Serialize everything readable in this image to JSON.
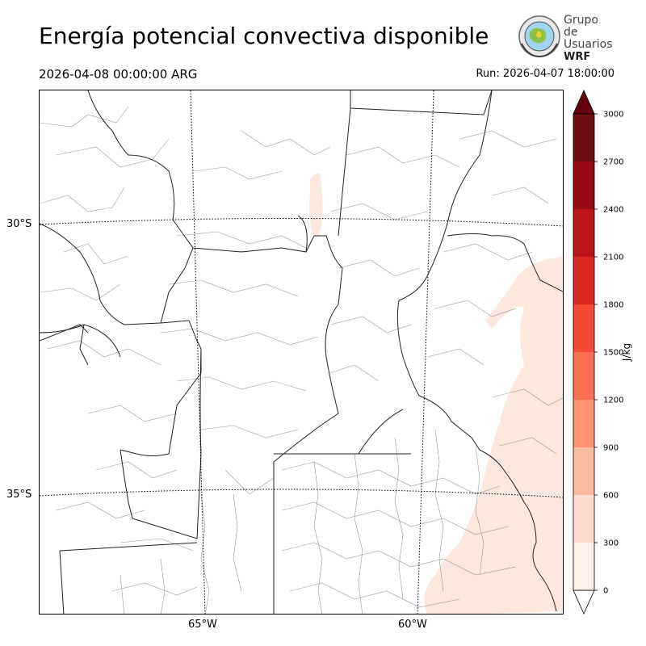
{
  "header": {
    "title": "Energía potencial convectiva disponible",
    "valid_time": "2026-04-08 00:00:00 ARG",
    "run_time": "Run: 2026-04-07 18:00:00"
  },
  "logo": {
    "line1": "Grupo de",
    "line2": "Usuarios",
    "line3": "WRF"
  },
  "map": {
    "lat_labels": [
      "30°S",
      "35°S"
    ],
    "lon_labels": [
      "65°W",
      "60°W"
    ]
  },
  "colorbar": {
    "unit": "J/kg",
    "ticks": [
      "0",
      "300",
      "600",
      "900",
      "1200",
      "1500",
      "1800",
      "2100",
      "2400",
      "2700",
      "3000"
    ],
    "colors": [
      "#fff0e9",
      "#fedbcc",
      "#fcbba1",
      "#fc9474",
      "#fb7050",
      "#f34a36",
      "#db2822",
      "#bb151a",
      "#9a0c14",
      "#6f0d10"
    ],
    "over_color": "#67000d",
    "under_color": "#ffffff"
  },
  "colors": {
    "shading": "#fde8df",
    "border": "#222222",
    "county": "#9a9a9a"
  }
}
